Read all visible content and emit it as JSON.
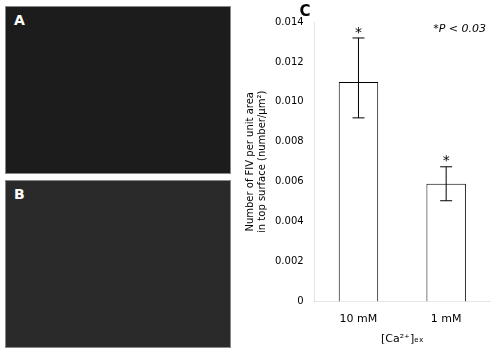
{
  "chart_data": {
    "type": "bar",
    "categories": [
      "10 mM",
      "1 mM"
    ],
    "values": [
      0.011,
      0.0059
    ],
    "error_up": [
      0.0022,
      0.00085
    ],
    "error_down": [
      0.0018,
      0.00085
    ],
    "star_labels": [
      "*",
      "*"
    ],
    "color": "#ffffff",
    "x_label": "[Ca²⁺]ₑₓ",
    "y_label": [
      "Number of FIV per unit area",
      "in top surface (number/μm²)"
    ],
    "annotation": "*P < 0.03",
    "panel_labels": [
      "A",
      "B",
      "C"
    ],
    "ylim": [
      0,
      0.014
    ],
    "yticks": [
      0,
      0.002,
      0.004,
      0.006,
      0.008,
      {
        "value": 0.01,
        "label": "0.010"
      },
      0.012,
      0.014
    ],
    "grid": false
  }
}
